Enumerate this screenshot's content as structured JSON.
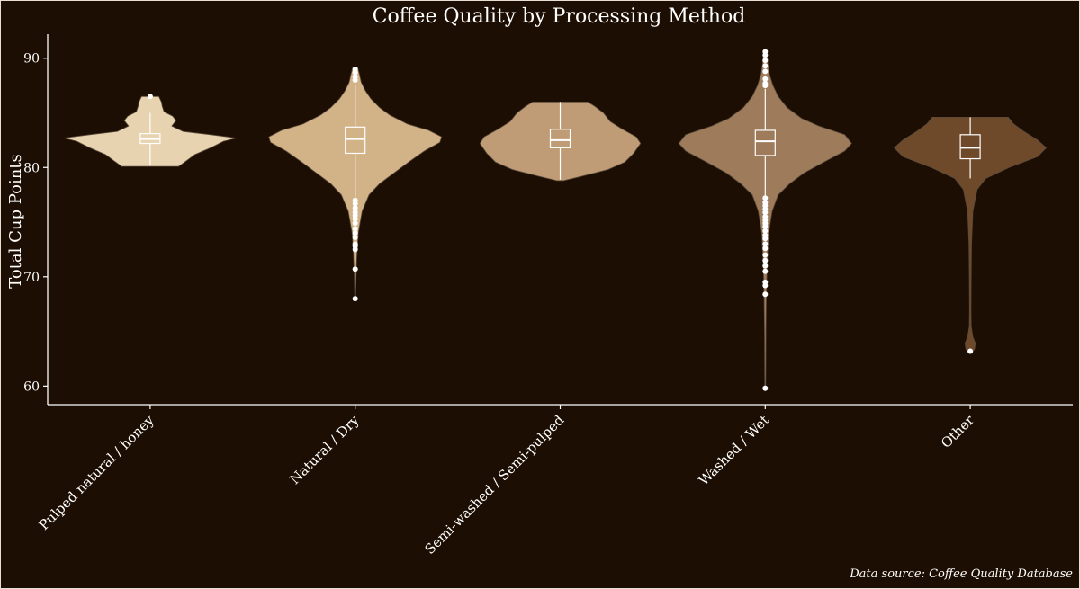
{
  "chart_data": {
    "type": "violin",
    "title": "Coffee Quality by Processing Method",
    "xlabel": "",
    "ylabel": "Total Cup Points",
    "ylim": [
      58.3,
      92.2
    ],
    "yticks": [
      60,
      70,
      80,
      90
    ],
    "grid": false,
    "legend": "none",
    "caption": "Data source: Coffee Quality Database",
    "categories": [
      "Pulped natural / honey",
      "Natural / Dry",
      "Semi-washed / Semi-pulped",
      "Washed / Wet",
      "Other"
    ],
    "colors": [
      "#e8d3b0",
      "#d2b287",
      "#bf9c75",
      "#9e7b5a",
      "#6e4a2b"
    ],
    "series": [
      {
        "box": {
          "min": 80.2,
          "q1": 82.2,
          "median": 82.6,
          "q3": 83.1,
          "max": 85.0
        },
        "outliers": [
          86.5
        ],
        "density": [
          [
            80.1,
            0.33
          ],
          [
            80.5,
            0.4
          ],
          [
            81.2,
            0.52
          ],
          [
            81.8,
            0.7
          ],
          [
            82.4,
            0.85
          ],
          [
            82.7,
            1.0
          ],
          [
            83.0,
            0.7
          ],
          [
            83.3,
            0.38
          ],
          [
            83.8,
            0.25
          ],
          [
            84.3,
            0.3
          ],
          [
            84.7,
            0.26
          ],
          [
            85.1,
            0.16
          ],
          [
            85.6,
            0.14
          ],
          [
            86.0,
            0.13
          ],
          [
            86.5,
            0.1
          ]
        ]
      },
      {
        "box": {
          "min": 77.3,
          "q1": 81.3,
          "median": 82.6,
          "q3": 83.7,
          "max": 87.5
        },
        "outliers": [
          89.0,
          88.7,
          88.3,
          88.0,
          77.0,
          76.7,
          76.3,
          75.9,
          75.6,
          75.3,
          74.9,
          74.4,
          74.0,
          73.6,
          73.0,
          72.8,
          72.5,
          70.7,
          68.0
        ],
        "density": [
          [
            67.9,
            0.005
          ],
          [
            70.0,
            0.01
          ],
          [
            72.0,
            0.02
          ],
          [
            74.0,
            0.035
          ],
          [
            76.0,
            0.08
          ],
          [
            77.5,
            0.16
          ],
          [
            78.5,
            0.28
          ],
          [
            79.5,
            0.45
          ],
          [
            80.5,
            0.62
          ],
          [
            81.5,
            0.8
          ],
          [
            82.3,
            0.98
          ],
          [
            82.8,
            1.0
          ],
          [
            83.4,
            0.85
          ],
          [
            84.0,
            0.6
          ],
          [
            84.8,
            0.4
          ],
          [
            85.5,
            0.28
          ],
          [
            86.3,
            0.18
          ],
          [
            87.0,
            0.12
          ],
          [
            87.8,
            0.07
          ],
          [
            88.5,
            0.05
          ],
          [
            89.1,
            0.03
          ]
        ]
      },
      {
        "box": {
          "min": 78.9,
          "q1": 81.8,
          "median": 82.5,
          "q3": 83.5,
          "max": 86.0
        },
        "outliers": [],
        "density": [
          [
            78.8,
            0.04
          ],
          [
            79.2,
            0.25
          ],
          [
            79.8,
            0.55
          ],
          [
            80.5,
            0.75
          ],
          [
            81.3,
            0.85
          ],
          [
            82.2,
            0.93
          ],
          [
            82.8,
            0.88
          ],
          [
            83.5,
            0.72
          ],
          [
            84.2,
            0.58
          ],
          [
            85.0,
            0.5
          ],
          [
            85.6,
            0.4
          ],
          [
            86.0,
            0.32
          ]
        ]
      },
      {
        "box": {
          "min": 77.3,
          "q1": 81.1,
          "median": 82.4,
          "q3": 83.4,
          "max": 87.2
        },
        "outliers": [
          90.6,
          90.3,
          89.8,
          89.3,
          88.8,
          88.1,
          87.7,
          87.5,
          77.2,
          76.8,
          76.5,
          76.2,
          75.9,
          75.5,
          75.2,
          74.9,
          74.6,
          74.2,
          73.8,
          73.5,
          73.0,
          72.6,
          72.0,
          71.5,
          71.0,
          70.5,
          69.5,
          69.2,
          68.4,
          59.8
        ],
        "density": [
          [
            59.8,
            0.005
          ],
          [
            65.0,
            0.008
          ],
          [
            68.0,
            0.012
          ],
          [
            71.0,
            0.022
          ],
          [
            74.0,
            0.04
          ],
          [
            76.0,
            0.08
          ],
          [
            77.5,
            0.15
          ],
          [
            78.5,
            0.28
          ],
          [
            79.5,
            0.45
          ],
          [
            80.5,
            0.68
          ],
          [
            81.5,
            0.92
          ],
          [
            82.2,
            1.0
          ],
          [
            83.0,
            0.92
          ],
          [
            83.8,
            0.62
          ],
          [
            84.5,
            0.42
          ],
          [
            85.5,
            0.25
          ],
          [
            86.5,
            0.15
          ],
          [
            87.5,
            0.09
          ],
          [
            88.5,
            0.05
          ],
          [
            89.5,
            0.03
          ],
          [
            90.6,
            0.02
          ]
        ]
      },
      {
        "box": {
          "min": 79.0,
          "q1": 80.8,
          "median": 81.8,
          "q3": 83.0,
          "max": 84.6
        },
        "outliers": [
          63.2
        ],
        "density": [
          [
            63.0,
            0.02
          ],
          [
            63.4,
            0.05
          ],
          [
            63.9,
            0.06
          ],
          [
            64.5,
            0.03
          ],
          [
            65.5,
            0.01
          ],
          [
            67.0,
            0.008
          ],
          [
            70.0,
            0.01
          ],
          [
            73.0,
            0.015
          ],
          [
            76.0,
            0.03
          ],
          [
            78.0,
            0.08
          ],
          [
            79.0,
            0.18
          ],
          [
            80.0,
            0.45
          ],
          [
            81.0,
            0.78
          ],
          [
            81.8,
            0.88
          ],
          [
            82.5,
            0.78
          ],
          [
            83.3,
            0.62
          ],
          [
            84.0,
            0.5
          ],
          [
            84.6,
            0.44
          ]
        ]
      }
    ]
  }
}
